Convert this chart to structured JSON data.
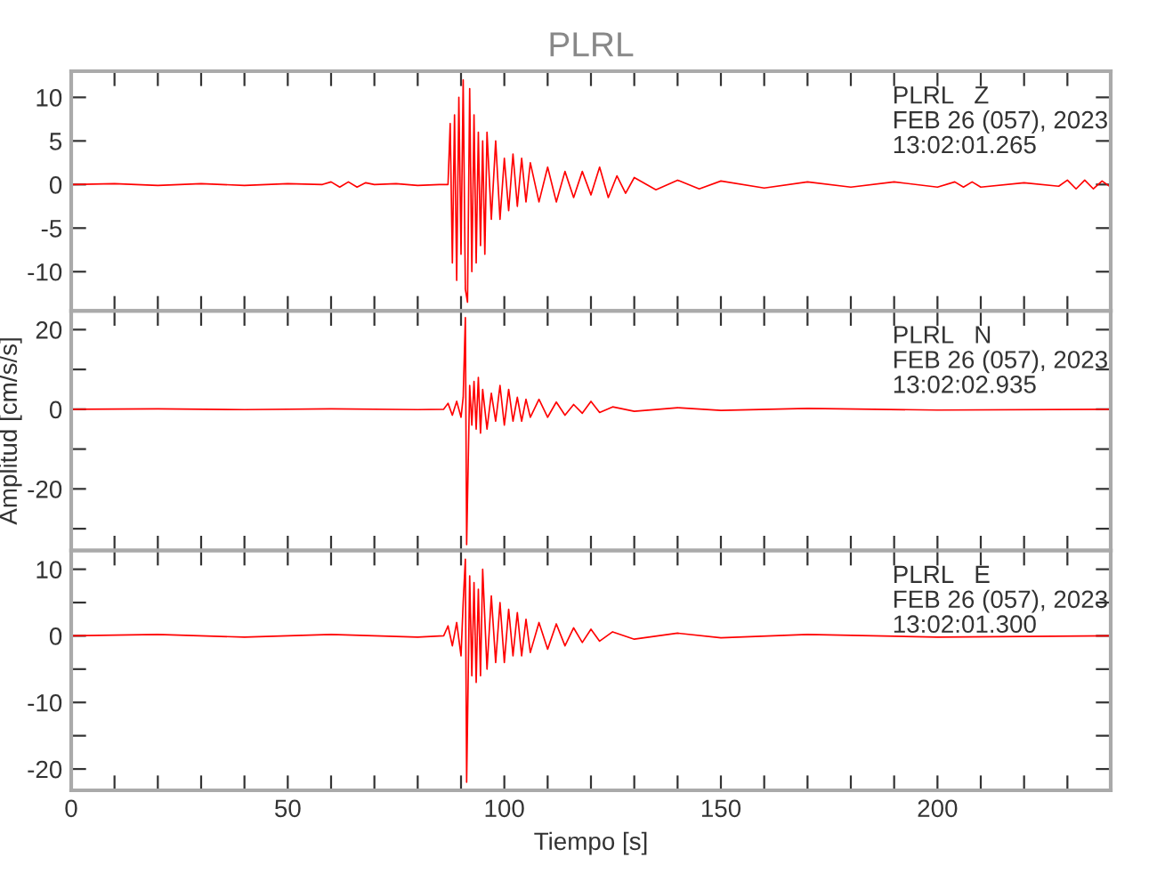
{
  "chart_data": [
    {
      "type": "line",
      "title": "PLRL",
      "xlim": [
        0,
        240
      ],
      "ylim": [
        -14.5,
        13
      ],
      "tick_labels": "y",
      "xticks": [
        0,
        {
          "value": 10,
          "label": null
        },
        {
          "value": 20,
          "label": null
        },
        {
          "value": 30,
          "label": null
        },
        {
          "value": 40,
          "label": null
        },
        50,
        {
          "value": 60,
          "label": null
        },
        {
          "value": 70,
          "label": null
        },
        {
          "value": 80,
          "label": null
        },
        {
          "value": 90,
          "label": null
        },
        100,
        {
          "value": 110,
          "label": null
        },
        {
          "value": 120,
          "label": null
        },
        {
          "value": 130,
          "label": null
        },
        {
          "value": 140,
          "label": null
        },
        150,
        {
          "value": 160,
          "label": null
        },
        {
          "value": 170,
          "label": null
        },
        {
          "value": 180,
          "label": null
        },
        {
          "value": 190,
          "label": null
        },
        200,
        {
          "value": 210,
          "label": null
        },
        {
          "value": 220,
          "label": null
        },
        {
          "value": 230,
          "label": null
        },
        {
          "value": 240,
          "label": null
        }
      ],
      "yticks": [
        -10,
        -5,
        0,
        5,
        10
      ],
      "annotations": [
        "PLRL   Z",
        "FEB 26 (057), 2023",
        "13:02:01.265"
      ],
      "series": [
        {
          "color": "#ff0000",
          "x": [
            0,
            10,
            20,
            30,
            40,
            50,
            58,
            60,
            62,
            64,
            66,
            68,
            70,
            75,
            80,
            85,
            87,
            87.5,
            88,
            88.5,
            89,
            89.5,
            90,
            90.5,
            91,
            91.5,
            92,
            92.5,
            93,
            93.5,
            94,
            94.5,
            95,
            95.5,
            96,
            97,
            98,
            99,
            100,
            101,
            102,
            103,
            104,
            105,
            106,
            108,
            110,
            112,
            114,
            116,
            118,
            120,
            122,
            124,
            126,
            128,
            130,
            135,
            140,
            145,
            150,
            160,
            170,
            180,
            190,
            200,
            204,
            206,
            208,
            210,
            220,
            228,
            230,
            232,
            234,
            236,
            238,
            240
          ],
          "values": [
            0,
            0.1,
            -0.1,
            0.1,
            -0.1,
            0.1,
            0,
            0.3,
            -0.3,
            0.3,
            -0.3,
            0.2,
            0,
            0.1,
            -0.1,
            0,
            0,
            7,
            -9,
            8,
            -11,
            10,
            -8,
            12,
            -12,
            -13.5,
            11,
            -10,
            8,
            -9,
            6,
            -7,
            5,
            -8,
            6,
            -4,
            5,
            -4,
            3,
            -3,
            3.5,
            -2.5,
            3,
            -2,
            2.5,
            -2,
            2,
            -2,
            1.5,
            -1.5,
            1.5,
            -1.2,
            2,
            -1.5,
            1.0,
            -1,
            0.8,
            -0.6,
            0.5,
            -0.5,
            0.4,
            -0.4,
            0.3,
            -0.3,
            0.3,
            -0.3,
            0.3,
            -0.3,
            0.3,
            -0.3,
            0.2,
            -0.2,
            0.5,
            -0.5,
            0.5,
            -0.5,
            0.4,
            -0.3
          ]
        }
      ]
    },
    {
      "type": "line",
      "ylabel": "Amplitud [cm/s/s]",
      "xlim": [
        0,
        240
      ],
      "ylim": [
        -35.5,
        24.7
      ],
      "tick_labels": "y",
      "xticks": [
        0,
        {
          "value": 10,
          "label": null
        },
        {
          "value": 20,
          "label": null
        },
        {
          "value": 30,
          "label": null
        },
        {
          "value": 40,
          "label": null
        },
        50,
        {
          "value": 60,
          "label": null
        },
        {
          "value": 70,
          "label": null
        },
        {
          "value": 80,
          "label": null
        },
        {
          "value": 90,
          "label": null
        },
        100,
        {
          "value": 110,
          "label": null
        },
        {
          "value": 120,
          "label": null
        },
        {
          "value": 130,
          "label": null
        },
        {
          "value": 140,
          "label": null
        },
        150,
        {
          "value": 160,
          "label": null
        },
        {
          "value": 170,
          "label": null
        },
        {
          "value": 180,
          "label": null
        },
        {
          "value": 190,
          "label": null
        },
        200,
        {
          "value": 210,
          "label": null
        },
        {
          "value": 220,
          "label": null
        },
        {
          "value": 230,
          "label": null
        },
        {
          "value": 240,
          "label": null
        }
      ],
      "yticks": [
        {
          "value": -30,
          "label": null
        },
        -20,
        {
          "value": -10,
          "label": null
        },
        0,
        {
          "value": 10,
          "label": null
        },
        20
      ],
      "annotations": [
        "PLRL   N",
        "FEB 26 (057), 2023",
        "13:02:02.935"
      ],
      "series": [
        {
          "color": "#ff0000",
          "x": [
            0,
            20,
            40,
            60,
            80,
            86,
            87,
            88,
            89,
            90,
            90.5,
            91,
            91.3,
            92,
            92.5,
            93,
            93.5,
            94,
            94.5,
            95,
            96,
            97,
            98,
            99,
            100,
            101,
            102,
            103,
            104,
            105,
            106,
            108,
            110,
            112,
            114,
            116,
            118,
            120,
            122,
            125,
            130,
            140,
            150,
            170,
            200,
            240
          ],
          "values": [
            0,
            0.1,
            -0.1,
            0.1,
            -0.1,
            0,
            1.5,
            -1.5,
            2,
            -2,
            3,
            23,
            -34,
            6,
            -4,
            7,
            -5,
            8,
            -6,
            5,
            -5,
            4,
            -3,
            6,
            -4,
            5,
            -3,
            3,
            -3,
            2.5,
            -2,
            2.5,
            -2,
            1.8,
            -1.5,
            1.2,
            -1,
            2,
            -0.8,
            0.6,
            -0.5,
            0.4,
            -0.3,
            0.2,
            -0.2,
            0
          ]
        }
      ]
    },
    {
      "type": "line",
      "xlabel": "Tiempo [s]",
      "xlim": [
        0,
        240
      ],
      "ylim": [
        -23.2,
        12.8
      ],
      "xticks": [
        0,
        {
          "value": 10,
          "label": null
        },
        {
          "value": 20,
          "label": null
        },
        {
          "value": 30,
          "label": null
        },
        {
          "value": 40,
          "label": null
        },
        50,
        {
          "value": 60,
          "label": null
        },
        {
          "value": 70,
          "label": null
        },
        {
          "value": 80,
          "label": null
        },
        {
          "value": 90,
          "label": null
        },
        100,
        {
          "value": 110,
          "label": null
        },
        {
          "value": 120,
          "label": null
        },
        {
          "value": 130,
          "label": null
        },
        {
          "value": 140,
          "label": null
        },
        150,
        {
          "value": 160,
          "label": null
        },
        {
          "value": 170,
          "label": null
        },
        {
          "value": 180,
          "label": null
        },
        {
          "value": 190,
          "label": null
        },
        200,
        {
          "value": 210,
          "label": null
        },
        {
          "value": 220,
          "label": null
        },
        {
          "value": 230,
          "label": null
        },
        {
          "value": 240,
          "label": null
        }
      ],
      "yticks": [
        -20,
        {
          "value": -15,
          "label": null
        },
        -10,
        {
          "value": -5,
          "label": null
        },
        0,
        {
          "value": 5,
          "label": null
        },
        10
      ],
      "annotations": [
        "PLRL   E",
        "FEB 26 (057), 2023",
        "13:02:01.300"
      ],
      "series": [
        {
          "color": "#ff0000",
          "x": [
            0,
            20,
            40,
            60,
            80,
            86,
            87,
            88,
            89,
            90,
            90.5,
            91,
            91.3,
            92,
            92.5,
            93,
            93.5,
            94,
            94.5,
            95,
            96,
            97,
            98,
            99,
            100,
            101,
            102,
            103,
            104,
            105,
            106,
            108,
            110,
            112,
            114,
            116,
            118,
            120,
            122,
            125,
            130,
            140,
            150,
            170,
            200,
            240
          ],
          "values": [
            0,
            0.2,
            -0.2,
            0.2,
            -0.2,
            0,
            1.5,
            -1.5,
            2,
            -3,
            5,
            11.5,
            -22,
            9,
            -6,
            8,
            -7,
            7,
            -6,
            10,
            -5,
            6,
            -4,
            5,
            -4,
            4,
            -3,
            3.5,
            -3,
            2.5,
            -2.5,
            2,
            -2,
            1.8,
            -1.5,
            1.2,
            -1,
            1,
            -0.8,
            0.6,
            -0.5,
            0.4,
            -0.3,
            0.2,
            -0.2,
            0
          ]
        }
      ]
    }
  ]
}
